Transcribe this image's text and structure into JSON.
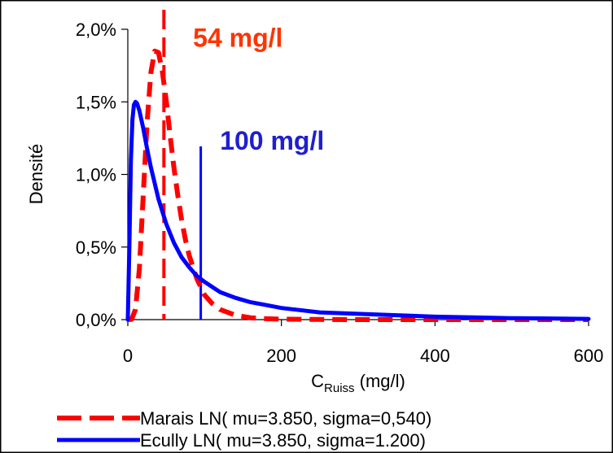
{
  "chart_data": {
    "type": "line",
    "xlabel_main": "C",
    "xlabel_sub": "Ruiss",
    "xlabel_unit": "(mg/l)",
    "ylabel": "Densité",
    "xlim": [
      0,
      600
    ],
    "ylim": [
      0,
      0.02
    ],
    "x_ticks": [
      0,
      200,
      400,
      600
    ],
    "x_tick_labels": [
      "0",
      "200",
      "400",
      "600"
    ],
    "y_ticks": [
      0,
      0.005,
      0.01,
      0.015,
      0.02
    ],
    "y_tick_labels": [
      "0,0%",
      "0,5%",
      "1,0%",
      "1,5%",
      "2,0%"
    ],
    "grid": false,
    "legend_position": "bottom",
    "series": [
      {
        "name": "Marais LN( mu=3.850, sigma=0,540)",
        "color": "#ff0000",
        "style": "dashed",
        "x": [
          0,
          5,
          10,
          15,
          20,
          25,
          30,
          35,
          40,
          45,
          50,
          55,
          60,
          65,
          70,
          75,
          80,
          90,
          100,
          110,
          120,
          140,
          160,
          180,
          200,
          250,
          300,
          350,
          400,
          450,
          500,
          550,
          600
        ],
        "y": [
          0,
          2e-05,
          0.0007,
          0.0035,
          0.0085,
          0.0135,
          0.017,
          0.0185,
          0.0184,
          0.0171,
          0.0151,
          0.0127,
          0.0105,
          0.0086,
          0.0069,
          0.0055,
          0.0044,
          0.0028,
          0.0017,
          0.0011,
          0.0007,
          0.0003,
          0.00013,
          6e-05,
          3e-05,
          1e-05,
          0,
          0,
          0,
          0,
          0,
          0,
          0
        ]
      },
      {
        "name": "Ecully LN( mu=3.850, sigma=1.200)",
        "color": "#0000ff",
        "style": "solid",
        "x": [
          0,
          2,
          4,
          6,
          8,
          10,
          12,
          15,
          20,
          25,
          30,
          40,
          50,
          60,
          70,
          80,
          90,
          100,
          120,
          140,
          160,
          180,
          200,
          250,
          300,
          350,
          400,
          450,
          500,
          550,
          600
        ],
        "y": [
          0,
          0.005,
          0.011,
          0.0138,
          0.0148,
          0.015,
          0.0149,
          0.0144,
          0.0132,
          0.0118,
          0.0105,
          0.0083,
          0.0066,
          0.0053,
          0.0043,
          0.0036,
          0.003,
          0.0026,
          0.0019,
          0.0015,
          0.0012,
          0.001,
          0.0008,
          0.0005,
          0.0004,
          0.0003,
          0.0002,
          0.00015,
          0.0001,
          8e-05,
          5e-05
        ]
      }
    ],
    "vlines": [
      {
        "x": 47,
        "color": "#ff0000",
        "style": "dashed"
      },
      {
        "x": 95,
        "color": "#0000ff",
        "style": "solid"
      }
    ],
    "annotations": [
      {
        "text": "54 mg/l",
        "color": "#ff3300",
        "x": 85,
        "y": 0.0188
      },
      {
        "text": "100 mg/l",
        "color": "#1f1fcf",
        "x": 120,
        "y": 0.0117
      }
    ]
  }
}
